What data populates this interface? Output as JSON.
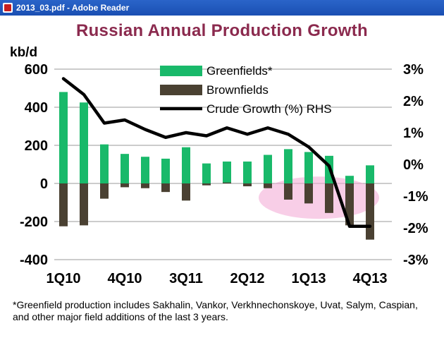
{
  "window": {
    "title": "2013_03.pdf - Adobe Reader"
  },
  "colors": {
    "greenfields": "#19b96a",
    "brownfields": "#4a4132",
    "growth_line": "#000000",
    "title": "#8b2a4e",
    "highlight": "#f3a6d3"
  },
  "chart_data": {
    "type": "bar",
    "title": "Russian Annual Production Growth",
    "left_axis_label": "kb/d",
    "left_ylim": [
      -400,
      600
    ],
    "left_ticks": [
      "600",
      "400",
      "200",
      "0",
      "-200",
      "-400"
    ],
    "right_ylim": [
      -3,
      3
    ],
    "right_ticks": [
      "3%",
      "2%",
      "1%",
      "0%",
      "-1%",
      "-2%",
      "-3%"
    ],
    "x_tick_labels": [
      "1Q10",
      "4Q10",
      "3Q11",
      "2Q12",
      "1Q13",
      "4Q13"
    ],
    "categories": [
      "1Q10",
      "2Q10",
      "3Q10",
      "4Q10",
      "1Q11",
      "2Q11",
      "3Q11",
      "4Q11",
      "1Q12",
      "2Q12",
      "3Q12",
      "4Q12",
      "1Q13",
      "2Q13",
      "3Q13",
      "4Q13"
    ],
    "legend": {
      "greenfields": "Greenfields*",
      "brownfields": "Brownfields",
      "growth": "Crude Growth (%) RHS"
    },
    "series": [
      {
        "name": "Greenfields*",
        "values": [
          480,
          425,
          205,
          155,
          140,
          130,
          190,
          105,
          115,
          115,
          150,
          180,
          165,
          145,
          40,
          95
        ]
      },
      {
        "name": "Brownfields",
        "values": [
          -225,
          -220,
          -80,
          -20,
          -25,
          -45,
          -90,
          -10,
          5,
          -15,
          -25,
          -85,
          -105,
          -155,
          -220,
          -295
        ]
      },
      {
        "name": "Crude Growth (%) RHS",
        "axis": "right",
        "values": [
          2.7,
          2.2,
          1.3,
          1.4,
          1.1,
          0.85,
          1.0,
          0.9,
          1.15,
          0.95,
          1.15,
          0.95,
          0.55,
          -0.05,
          -1.95,
          -1.95
        ]
      }
    ],
    "grid": true,
    "legend_position": "top-center"
  },
  "footnote": "*Greenfield production includes Sakhalin, Vankor, Verkhnechonskoye, Uvat, Salym, Caspian, and other major field additions of the last 3 years."
}
